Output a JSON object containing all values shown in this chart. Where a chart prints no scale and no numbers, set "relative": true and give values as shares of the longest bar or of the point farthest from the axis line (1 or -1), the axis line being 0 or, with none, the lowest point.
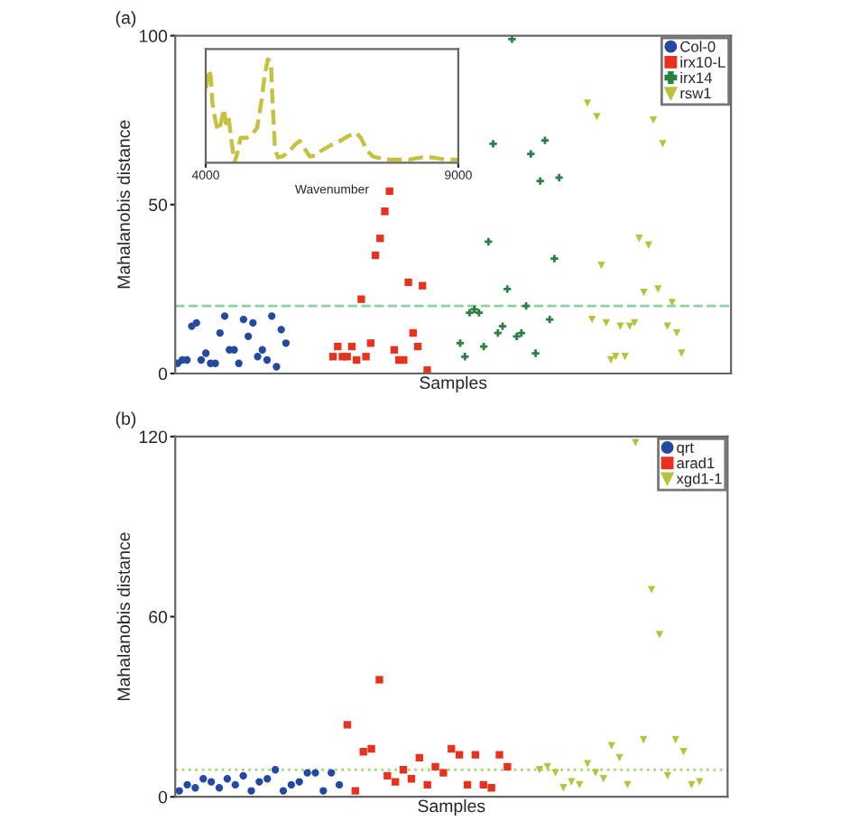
{
  "chart_data": [
    {
      "type": "scatter",
      "title": "(a)",
      "xlabel": "Samples",
      "ylabel": "Mahalanobis distance",
      "ylim": [
        0,
        100
      ],
      "yticks": [
        0,
        50,
        100
      ],
      "tick_labels": "y",
      "legend": "top right",
      "grid": false,
      "categories": [
        null,
        null,
        null,
        null,
        null,
        null,
        null,
        null,
        null,
        null,
        null,
        null,
        null,
        null,
        null,
        null,
        null,
        null,
        null,
        null,
        null,
        null,
        null,
        null,
        null,
        null,
        null,
        null,
        null,
        null,
        null,
        null,
        null,
        null,
        null,
        null,
        null,
        null,
        null,
        null,
        null,
        null,
        null,
        null,
        null,
        null,
        null,
        null,
        null,
        null,
        null,
        null,
        null,
        null,
        null,
        null,
        null,
        null,
        null,
        null,
        null,
        null,
        null,
        null,
        null,
        null,
        null,
        null,
        null,
        null,
        null,
        null,
        null,
        null,
        null,
        null,
        null,
        null,
        null,
        null,
        null,
        null,
        null,
        null,
        null,
        null,
        null,
        null,
        null,
        null,
        null,
        null,
        null,
        null,
        null,
        null,
        null,
        null,
        null,
        null,
        null,
        null,
        null,
        null,
        null,
        null,
        null,
        null,
        null,
        null,
        null,
        null,
        null,
        null,
        null,
        null,
        null,
        null
      ],
      "series": [
        {
          "name": "Col-0",
          "color": "#2449a0",
          "marker": "circle",
          "values": [
            3,
            4,
            4,
            14,
            15,
            4,
            6,
            3,
            3,
            12,
            17,
            7,
            7,
            3,
            16,
            11,
            15,
            5,
            7,
            4,
            17,
            2,
            13,
            9,
            null,
            null,
            null,
            null,
            null,
            null,
            null,
            null,
            null,
            null,
            null,
            null,
            null,
            null,
            null,
            null,
            null,
            null,
            null,
            null,
            null,
            null,
            null,
            null,
            null,
            null,
            null,
            null,
            null,
            null,
            null,
            null,
            null,
            null,
            null,
            null,
            null,
            null,
            null,
            null,
            null,
            null,
            null,
            null,
            null,
            null,
            null,
            null,
            null,
            null,
            null,
            null,
            null,
            null,
            null,
            null,
            null,
            null,
            null,
            null,
            null,
            null,
            null,
            null,
            null,
            null,
            null,
            null,
            null,
            null,
            null,
            null,
            null,
            null,
            null,
            null,
            null,
            null,
            null,
            null,
            null,
            null,
            null,
            null,
            null,
            null,
            null,
            null,
            null,
            null,
            null,
            null,
            null,
            null
          ]
        },
        {
          "name": "irx10-L",
          "color": "#e8321e",
          "marker": "square",
          "values": [
            null,
            null,
            null,
            null,
            null,
            null,
            null,
            null,
            null,
            null,
            null,
            null,
            null,
            null,
            null,
            null,
            null,
            null,
            null,
            null,
            null,
            null,
            null,
            null,
            null,
            null,
            null,
            null,
            null,
            null,
            null,
            null,
            null,
            5,
            8,
            5,
            5,
            8,
            4,
            22,
            5,
            9,
            35,
            40,
            48,
            54,
            7,
            4,
            4,
            27,
            12,
            8,
            26,
            1,
            null,
            null,
            null,
            null,
            null,
            null,
            null,
            null,
            null,
            null,
            null,
            null,
            null,
            null,
            null,
            null,
            null,
            null,
            null,
            null,
            null,
            null,
            null,
            null,
            null,
            null,
            null,
            null,
            null,
            null,
            null,
            null,
            null,
            null,
            null,
            null,
            null,
            null,
            null,
            null,
            null,
            null,
            null,
            null,
            null,
            null,
            null,
            null,
            null,
            null,
            null,
            null,
            null,
            null,
            null,
            null,
            null,
            null,
            null,
            null,
            null,
            null,
            null,
            null
          ]
        },
        {
          "name": "irx14",
          "color": "#2a8040",
          "marker": "cross",
          "values": [
            null,
            null,
            null,
            null,
            null,
            null,
            null,
            null,
            null,
            null,
            null,
            null,
            null,
            null,
            null,
            null,
            null,
            null,
            null,
            null,
            null,
            null,
            null,
            null,
            null,
            null,
            null,
            null,
            null,
            null,
            null,
            null,
            null,
            null,
            null,
            null,
            null,
            null,
            null,
            null,
            null,
            null,
            null,
            null,
            null,
            null,
            null,
            null,
            null,
            null,
            null,
            null,
            null,
            null,
            null,
            null,
            null,
            null,
            null,
            null,
            9,
            5,
            18,
            19,
            18,
            8,
            39,
            68,
            12,
            14,
            25,
            99,
            11,
            12,
            20,
            65,
            6,
            57,
            69,
            16,
            34,
            58,
            null,
            null,
            null,
            null,
            null,
            null,
            null,
            null,
            null,
            null,
            null,
            null,
            null,
            null,
            null,
            null,
            null,
            null,
            null,
            null,
            null,
            null,
            null,
            null,
            null,
            null,
            null,
            null,
            null,
            null,
            null,
            null,
            null,
            null,
            null,
            null
          ]
        },
        {
          "name": "rsw1",
          "color": "#b8c23a",
          "marker": "triangle",
          "values": [
            null,
            null,
            null,
            null,
            null,
            null,
            null,
            null,
            null,
            null,
            null,
            null,
            null,
            null,
            null,
            null,
            null,
            null,
            null,
            null,
            null,
            null,
            null,
            null,
            null,
            null,
            null,
            null,
            null,
            null,
            null,
            null,
            null,
            null,
            null,
            null,
            null,
            null,
            null,
            null,
            null,
            null,
            null,
            null,
            null,
            null,
            null,
            null,
            null,
            null,
            null,
            null,
            null,
            null,
            null,
            null,
            null,
            null,
            null,
            null,
            null,
            null,
            null,
            null,
            null,
            null,
            null,
            null,
            null,
            null,
            null,
            null,
            null,
            null,
            null,
            null,
            null,
            null,
            null,
            null,
            null,
            null,
            null,
            null,
            null,
            null,
            null,
            80,
            16,
            76,
            32,
            15,
            4,
            5,
            14,
            5,
            14,
            15,
            40,
            24,
            38,
            75,
            25,
            68,
            14,
            21,
            12,
            6,
            null,
            null,
            null,
            null,
            null,
            null,
            null,
            null,
            null,
            null
          ]
        }
      ],
      "ref_lines": [
        {
          "axis": "y",
          "value": 20,
          "color": "#90d0a0",
          "line_style": "dashed"
        }
      ]
    },
    {
      "type": "line",
      "xlabel": "Wavenumber",
      "relative": true,
      "xlim": [
        4000,
        9000
      ],
      "xticks": [
        4000,
        9000
      ],
      "tick_labels": "x",
      "line_style": "dashed",
      "grid": false,
      "series": [
        {
          "color": "#c8c040",
          "x": [
            4010,
            4060,
            4100,
            4130,
            4190,
            4240,
            4300,
            4360,
            4400,
            4450,
            4510,
            4570,
            4630,
            4690,
            4810,
            4930,
            5020,
            5110,
            5170,
            5230,
            5290,
            5320,
            5370,
            5430,
            5520,
            5640,
            5760,
            5860,
            5940,
            6060,
            6180,
            6300,
            6480,
            6660,
            6830,
            6980,
            7070,
            7190,
            7310,
            7550,
            7790,
            8020,
            8260,
            8500,
            8740,
            9000
          ],
          "values": [
            0.72,
            0.9,
            0.84,
            0.59,
            0.41,
            0.31,
            0.38,
            0.52,
            0.38,
            0.45,
            0.21,
            0,
            0.1,
            0.24,
            0.24,
            0.28,
            0.34,
            0.62,
            0.86,
            1,
            0.97,
            0.62,
            0.14,
            0.05,
            0.06,
            0.1,
            0.17,
            0.21,
            0.15,
            0.06,
            0.07,
            0.12,
            0.17,
            0.21,
            0.26,
            0.29,
            0.24,
            0.12,
            0.06,
            0.03,
            0.03,
            0.03,
            0.05,
            0.05,
            0.03,
            0.03
          ]
        }
      ]
    },
    {
      "type": "scatter",
      "title": "(b)",
      "xlabel": "Samples",
      "ylabel": "Mahalanobis distance",
      "ylim": [
        0,
        120
      ],
      "yticks": [
        0,
        60,
        120
      ],
      "tick_labels": "y",
      "legend": "top right",
      "grid": false,
      "categories": [
        null,
        null,
        null,
        null,
        null,
        null,
        null,
        null,
        null,
        null,
        null,
        null,
        null,
        null,
        null,
        null,
        null,
        null,
        null,
        null,
        null,
        null,
        null,
        null,
        null,
        null,
        null,
        null,
        null,
        null,
        null,
        null,
        null,
        null,
        null,
        null,
        null,
        null,
        null,
        null,
        null,
        null,
        null,
        null,
        null,
        null,
        null,
        null,
        null,
        null,
        null,
        null,
        null,
        null,
        null,
        null,
        null,
        null,
        null,
        null,
        null,
        null,
        null,
        null,
        null,
        null,
        null,
        null,
        null
      ],
      "series": [
        {
          "name": "qrt",
          "color": "#2449a0",
          "marker": "circle",
          "values": [
            2,
            4,
            3,
            6,
            5,
            3,
            6,
            4,
            7,
            2,
            5,
            6,
            9,
            2,
            4,
            5,
            8,
            8,
            2,
            8,
            4,
            null,
            null,
            null,
            null,
            null,
            null,
            null,
            null,
            null,
            null,
            null,
            null,
            null,
            null,
            null,
            null,
            null,
            null,
            null,
            null,
            null,
            null,
            null,
            null,
            null,
            null,
            null,
            null,
            null,
            null,
            null,
            null,
            null,
            null,
            null,
            null,
            null,
            null,
            null,
            null,
            null,
            null,
            null,
            null,
            null,
            null,
            null,
            null
          ]
        },
        {
          "name": "arad1",
          "color": "#e8321e",
          "marker": "square",
          "values": [
            null,
            null,
            null,
            null,
            null,
            null,
            null,
            null,
            null,
            null,
            null,
            null,
            null,
            null,
            null,
            null,
            null,
            null,
            null,
            null,
            null,
            24,
            2,
            15,
            16,
            39,
            7,
            5,
            9,
            6,
            13,
            4,
            10,
            8,
            16,
            14,
            4,
            14,
            4,
            3,
            14,
            10,
            null,
            null,
            null,
            null,
            null,
            null,
            null,
            null,
            null,
            null,
            null,
            null,
            null,
            null,
            null,
            null,
            null,
            null,
            null,
            null,
            null,
            null,
            null,
            null,
            null,
            null,
            null
          ]
        },
        {
          "name": "xgd1-1",
          "color": "#b8c23a",
          "marker": "triangle",
          "values": [
            null,
            null,
            null,
            null,
            null,
            null,
            null,
            null,
            null,
            null,
            null,
            null,
            null,
            null,
            null,
            null,
            null,
            null,
            null,
            null,
            null,
            null,
            null,
            null,
            null,
            null,
            null,
            null,
            null,
            null,
            null,
            null,
            null,
            null,
            null,
            null,
            null,
            null,
            null,
            null,
            null,
            null,
            null,
            null,
            null,
            9,
            10,
            8,
            3,
            5,
            4,
            11,
            8,
            6,
            17,
            13,
            4,
            118,
            19,
            69,
            54,
            7,
            19,
            15,
            4,
            5,
            null,
            null,
            null
          ]
        }
      ],
      "ref_lines": [
        {
          "axis": "y",
          "value": 9,
          "color": "#a8d878",
          "line_style": "dotted"
        }
      ]
    }
  ]
}
